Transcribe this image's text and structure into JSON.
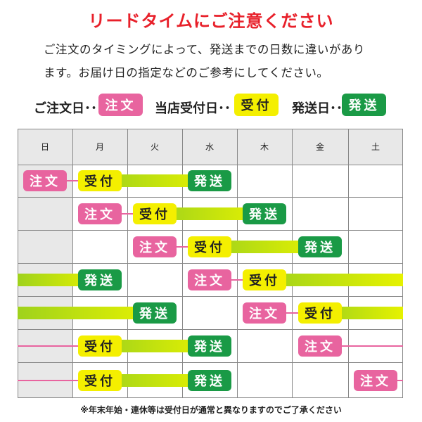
{
  "title": "リードタイムにご注意ください",
  "description": {
    "line1": "ご注文のタイミングによって、発送までの日数に違いがあり",
    "line2": "ます。お届け日の指定などのご参考にしてください。"
  },
  "legend": {
    "order_label": "ご注文日･･",
    "order_badge": "注文",
    "receive_label": "当店受付日･･",
    "receive_badge": "受付",
    "ship_label": "発送日･･",
    "ship_badge": "発送"
  },
  "calendar": {
    "days": [
      "日",
      "月",
      "火",
      "水",
      "木",
      "金",
      "土"
    ],
    "rows": [
      {
        "order_day": "日",
        "receive_day": "月",
        "ship_day": "水"
      },
      {
        "order_day": "月",
        "receive_day": "火",
        "ship_day": "木"
      },
      {
        "order_day": "火",
        "receive_day": "水",
        "ship_day": "金"
      },
      {
        "order_day": "水",
        "receive_day": "木",
        "ship_day": "月"
      },
      {
        "order_day": "木",
        "receive_day": "金",
        "ship_day": "火"
      },
      {
        "order_day": "金",
        "receive_day": "月",
        "ship_day": "水"
      },
      {
        "order_day": "土",
        "receive_day": "月",
        "ship_day": "水"
      }
    ]
  },
  "badges": {
    "order": "注文",
    "receive": "受付",
    "ship": "発送"
  },
  "colors": {
    "title": "#e8202a",
    "order": "#e8649f",
    "receive": "#f4ef00",
    "ship": "#1a9a46",
    "bar_start": "#9fd21c",
    "bar_end": "#e6f200",
    "grid": "#888888",
    "header_bg": "#e8e8e8"
  },
  "footnote": "※年末年始・連休等は受付日が通常と異なりますのでご了承ください"
}
